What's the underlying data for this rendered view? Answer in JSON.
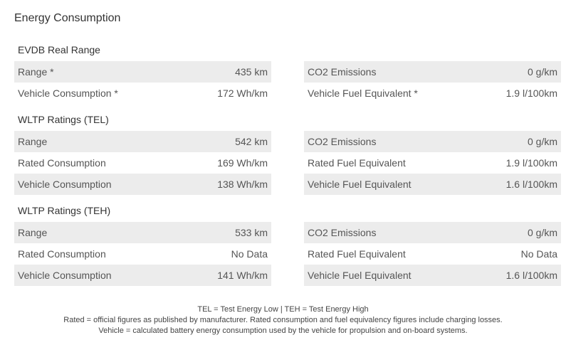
{
  "title": "Energy Consumption",
  "sections": [
    {
      "title": "EVDB Real Range",
      "left": [
        {
          "label": "Range *",
          "value": "435 km"
        },
        {
          "label": "Vehicle Consumption *",
          "value": "172 Wh/km"
        }
      ],
      "right": [
        {
          "label": "CO2 Emissions",
          "value": "0 g/km"
        },
        {
          "label": "Vehicle Fuel Equivalent *",
          "value": "1.9 l/100km"
        }
      ]
    },
    {
      "title": "WLTP Ratings (TEL)",
      "left": [
        {
          "label": "Range",
          "value": "542 km"
        },
        {
          "label": "Rated Consumption",
          "value": "169 Wh/km"
        },
        {
          "label": "Vehicle Consumption",
          "value": "138 Wh/km"
        }
      ],
      "right": [
        {
          "label": "CO2 Emissions",
          "value": "0 g/km"
        },
        {
          "label": "Rated Fuel Equivalent",
          "value": "1.9 l/100km"
        },
        {
          "label": "Vehicle Fuel Equivalent",
          "value": "1.6 l/100km"
        }
      ]
    },
    {
      "title": "WLTP Ratings (TEH)",
      "left": [
        {
          "label": "Range",
          "value": "533 km"
        },
        {
          "label": "Rated Consumption",
          "value": "No Data"
        },
        {
          "label": "Vehicle Consumption",
          "value": "141 Wh/km"
        }
      ],
      "right": [
        {
          "label": "CO2 Emissions",
          "value": "0 g/km"
        },
        {
          "label": "Rated Fuel Equivalent",
          "value": "No Data"
        },
        {
          "label": "Vehicle Fuel Equivalent",
          "value": "1.6 l/100km"
        }
      ]
    }
  ],
  "footnotes": [
    "TEL = Test Energy Low | TEH = Test Energy High",
    "Rated = official figures as published by manufacturer. Rated consumption and fuel equivalency figures include charging losses.",
    "Vehicle = calculated battery energy consumption used by the vehicle for propulsion and on-board systems."
  ]
}
